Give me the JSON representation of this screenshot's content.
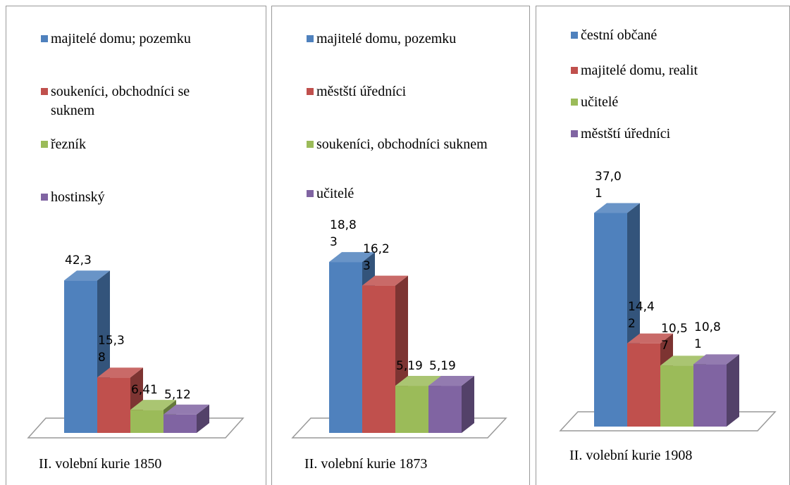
{
  "chart_data": [
    {
      "type": "bar3d",
      "categories": [
        "II. volební kurie 1850"
      ],
      "ylim": [
        0,
        50
      ],
      "series": [
        {
          "name": "majitelé domu; pozemku",
          "color": "#4f81bd",
          "values": [
            42.3
          ],
          "value_labels": [
            "42,3"
          ]
        },
        {
          "name": "soukeníci, obchodníci se suknem",
          "color": "#c0504d",
          "values": [
            15.38
          ],
          "value_labels": [
            "15,38"
          ]
        },
        {
          "name": "řezník",
          "color": "#9bbb59",
          "values": [
            6.41
          ],
          "value_labels": [
            "6,41"
          ]
        },
        {
          "name": "hostinský",
          "color": "#8064a2",
          "values": [
            5.12
          ],
          "value_labels": [
            "5,12"
          ]
        }
      ]
    },
    {
      "type": "bar3d",
      "categories": [
        "II. volební kurie 1873"
      ],
      "ylim": [
        0,
        20
      ],
      "series": [
        {
          "name": "majitelé domu, pozemku",
          "color": "#4f81bd",
          "values": [
            18.83
          ],
          "value_labels": [
            "18,83"
          ]
        },
        {
          "name": "městští úředníci",
          "color": "#c0504d",
          "values": [
            16.23
          ],
          "value_labels": [
            "16,23"
          ]
        },
        {
          "name": "soukeníci, obchodníci suknem",
          "color": "#9bbb59",
          "values": [
            5.19
          ],
          "value_labels": [
            "5,19"
          ]
        },
        {
          "name": "učitelé",
          "color": "#8064a2",
          "values": [
            5.19
          ],
          "value_labels": [
            "5,19"
          ]
        }
      ]
    },
    {
      "type": "bar3d",
      "categories": [
        "II. volební kurie 1908"
      ],
      "ylim": [
        0,
        40
      ],
      "series": [
        {
          "name": "čestní občané",
          "color": "#4f81bd",
          "values": [
            37.01
          ],
          "value_labels": [
            "37,01"
          ]
        },
        {
          "name": "majitelé domu, realit",
          "color": "#c0504d",
          "values": [
            14.42
          ],
          "value_labels": [
            "14,42"
          ]
        },
        {
          "name": "učitelé",
          "color": "#9bbb59",
          "values": [
            10.57
          ],
          "value_labels": [
            "10,57"
          ]
        },
        {
          "name": "městští úředníci",
          "color": "#8064a2",
          "values": [
            10.81
          ],
          "value_labels": [
            "10,81"
          ]
        }
      ]
    }
  ]
}
